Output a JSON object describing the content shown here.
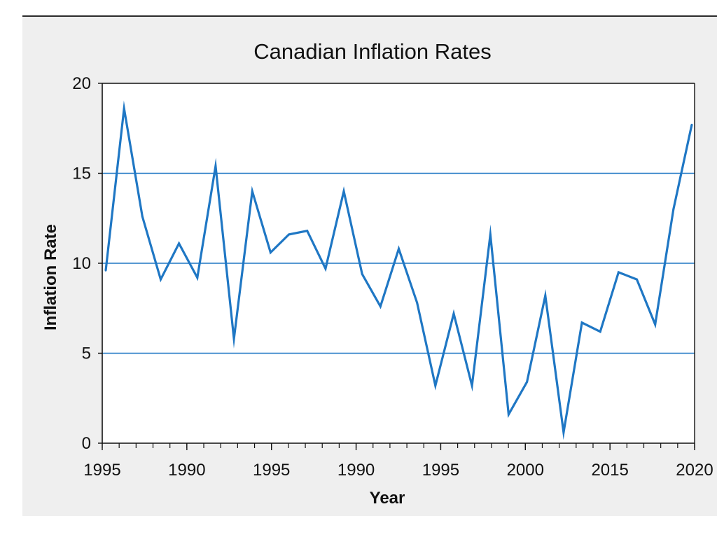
{
  "chart_data": {
    "type": "line",
    "title": "Canadian Inflation Rates",
    "xlabel": "Year",
    "ylabel": "Inflation Rate",
    "ylim": [
      0,
      20
    ],
    "y_ticks": [
      "0",
      "5",
      "10",
      "15",
      "20"
    ],
    "x_tick_labels": [
      "1995",
      "1990",
      "1995",
      "1990",
      "1995",
      "2000",
      "2015",
      "2020"
    ],
    "grid": "horizontal",
    "line_color": "#1f77c4",
    "series": [
      {
        "values": [
          9.6,
          18.6,
          12.6,
          9.1,
          11.1,
          9.2,
          15.4,
          5.8,
          14.0,
          10.6,
          11.6,
          11.8,
          9.7,
          14.0,
          9.4,
          7.6,
          10.8,
          7.8,
          3.2,
          7.2,
          3.2,
          11.6,
          1.6,
          3.4,
          8.2,
          0.6,
          6.7,
          6.2,
          9.5,
          9.1,
          6.6,
          13.0,
          17.7
        ]
      }
    ]
  }
}
